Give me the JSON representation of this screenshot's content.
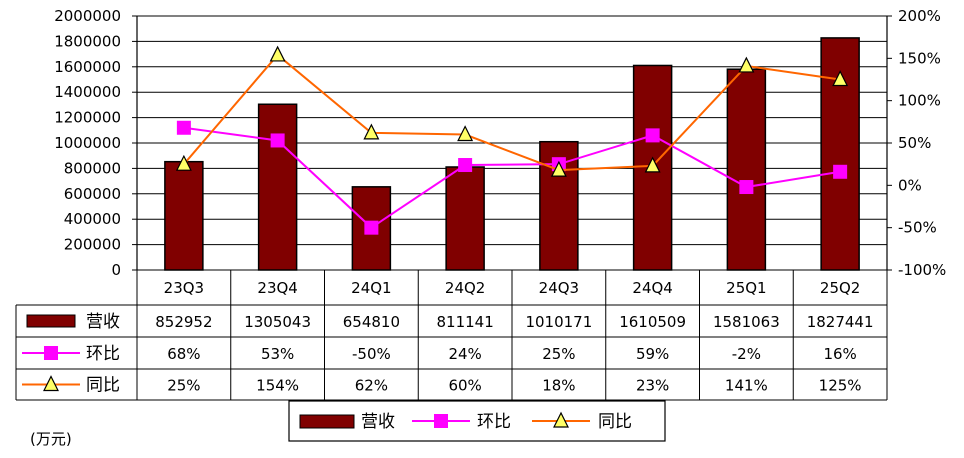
{
  "chart_data": {
    "type": "bar",
    "categories": [
      "23Q3",
      "23Q4",
      "24Q1",
      "24Q2",
      "24Q3",
      "24Q4",
      "25Q1",
      "25Q2"
    ],
    "series": [
      {
        "name": "营收",
        "type": "bar",
        "axis": "left",
        "values": [
          852952,
          1305043,
          654810,
          811141,
          1010171,
          1610509,
          1581063,
          1827441
        ],
        "display": [
          "852952",
          "1305043",
          "654810",
          "811141",
          "1010171",
          "1610509",
          "1581063",
          "1827441"
        ]
      },
      {
        "name": "环比",
        "type": "line",
        "axis": "right",
        "values": [
          68,
          53,
          -50,
          24,
          25,
          59,
          -2,
          16
        ],
        "display": [
          "68%",
          "53%",
          "-50%",
          "24%",
          "25%",
          "59%",
          "-2%",
          "16%"
        ]
      },
      {
        "name": "同比",
        "type": "line",
        "axis": "right",
        "values": [
          25,
          154,
          62,
          60,
          18,
          23,
          141,
          125
        ],
        "display": [
          "25%",
          "154%",
          "62%",
          "60%",
          "18%",
          "23%",
          "141%",
          "125%"
        ]
      }
    ],
    "ylim_left": [
      0,
      2000000
    ],
    "yticks_left": [
      "0",
      "200000",
      "400000",
      "600000",
      "800000",
      "1000000",
      "1200000",
      "1400000",
      "1600000",
      "1800000",
      "2000000"
    ],
    "ylim_right": [
      -100,
      200
    ],
    "yticks_right": [
      "-100%",
      "-50%",
      "0%",
      "50%",
      "100%",
      "150%",
      "200%"
    ],
    "unit": "(万元)",
    "grid": true,
    "legend_position": "bottom",
    "colors": {
      "营收": "#800000",
      "环比": "#ff00ff",
      "同比": "#ff6600",
      "marker_tri": "#ffff66"
    }
  }
}
